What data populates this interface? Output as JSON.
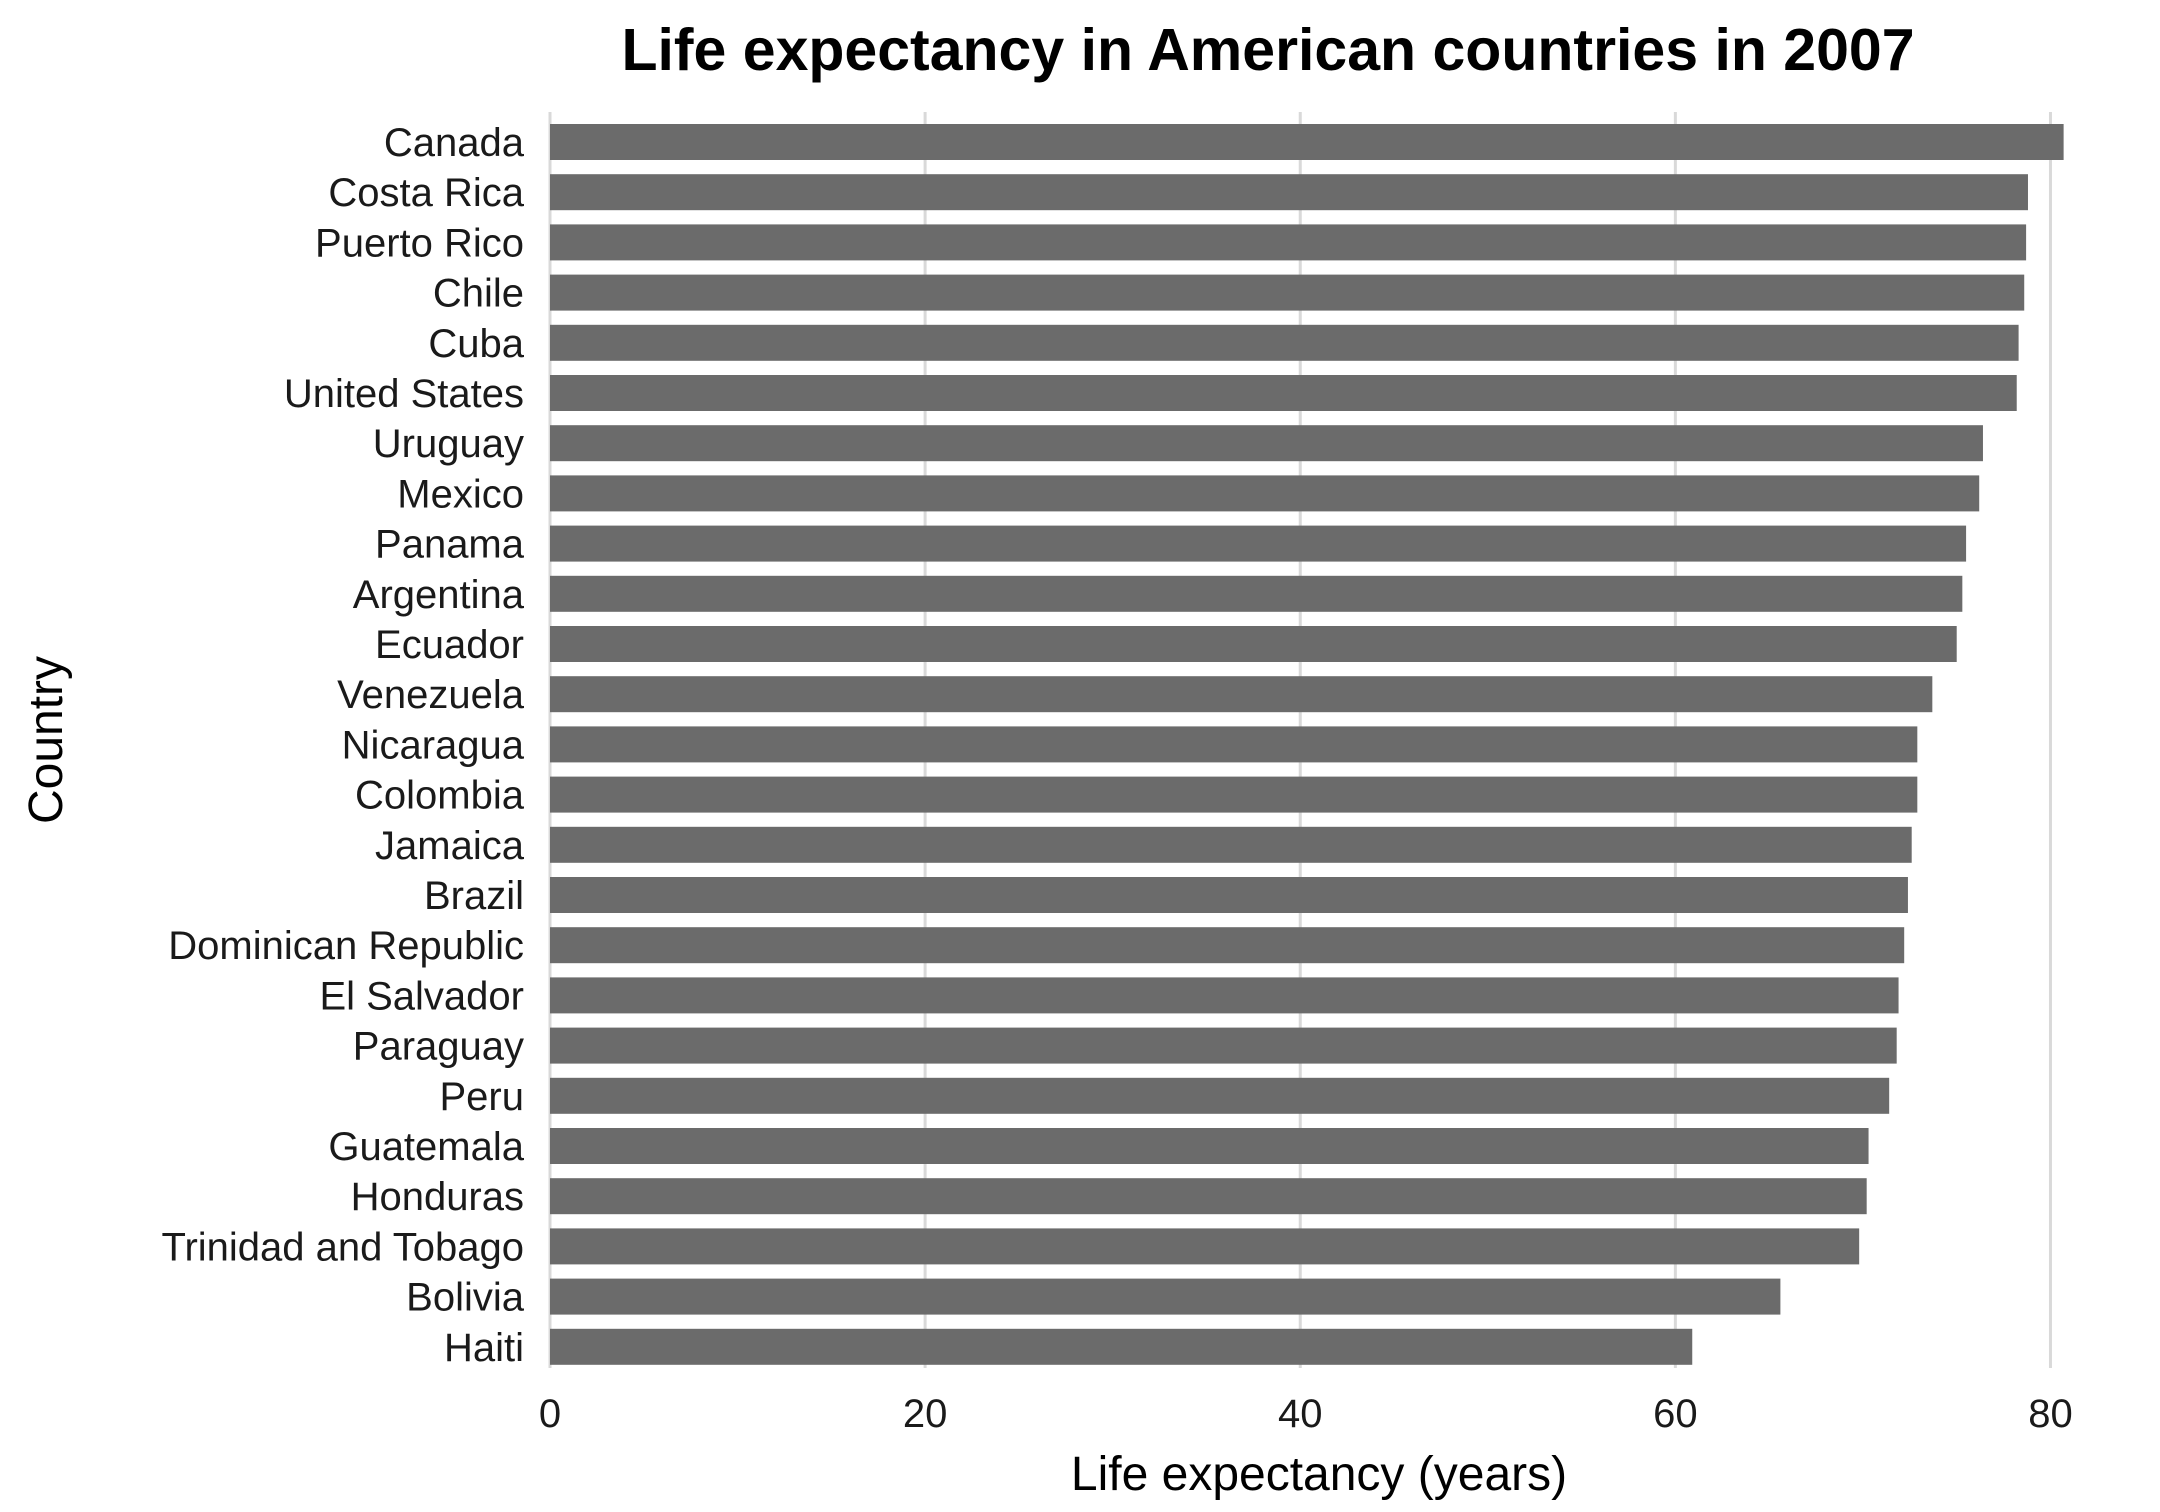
{
  "chart_data": {
    "type": "bar",
    "orientation": "horizontal",
    "title": "Life expectancy in American countries in 2007",
    "xlabel": "Life expectancy (years)",
    "ylabel": "Country",
    "xlim": [
      0,
      82
    ],
    "xticks": [
      0,
      20,
      40,
      60,
      80
    ],
    "grid": "vertical major gridlines only",
    "legend": "none",
    "bar_color": "#6b6b6b",
    "categories": [
      "Canada",
      "Costa Rica",
      "Puerto Rico",
      "Chile",
      "Cuba",
      "United States",
      "Uruguay",
      "Mexico",
      "Panama",
      "Argentina",
      "Ecuador",
      "Venezuela",
      "Nicaragua",
      "Colombia",
      "Jamaica",
      "Brazil",
      "Dominican Republic",
      "El Salvador",
      "Paraguay",
      "Peru",
      "Guatemala",
      "Honduras",
      "Trinidad and Tobago",
      "Bolivia",
      "Haiti"
    ],
    "values": [
      80.7,
      78.8,
      78.7,
      78.6,
      78.3,
      78.2,
      76.4,
      76.2,
      75.5,
      75.3,
      75.0,
      73.7,
      72.9,
      72.9,
      72.6,
      72.4,
      72.2,
      71.9,
      71.8,
      71.4,
      70.3,
      70.2,
      69.8,
      65.6,
      60.9
    ]
  }
}
